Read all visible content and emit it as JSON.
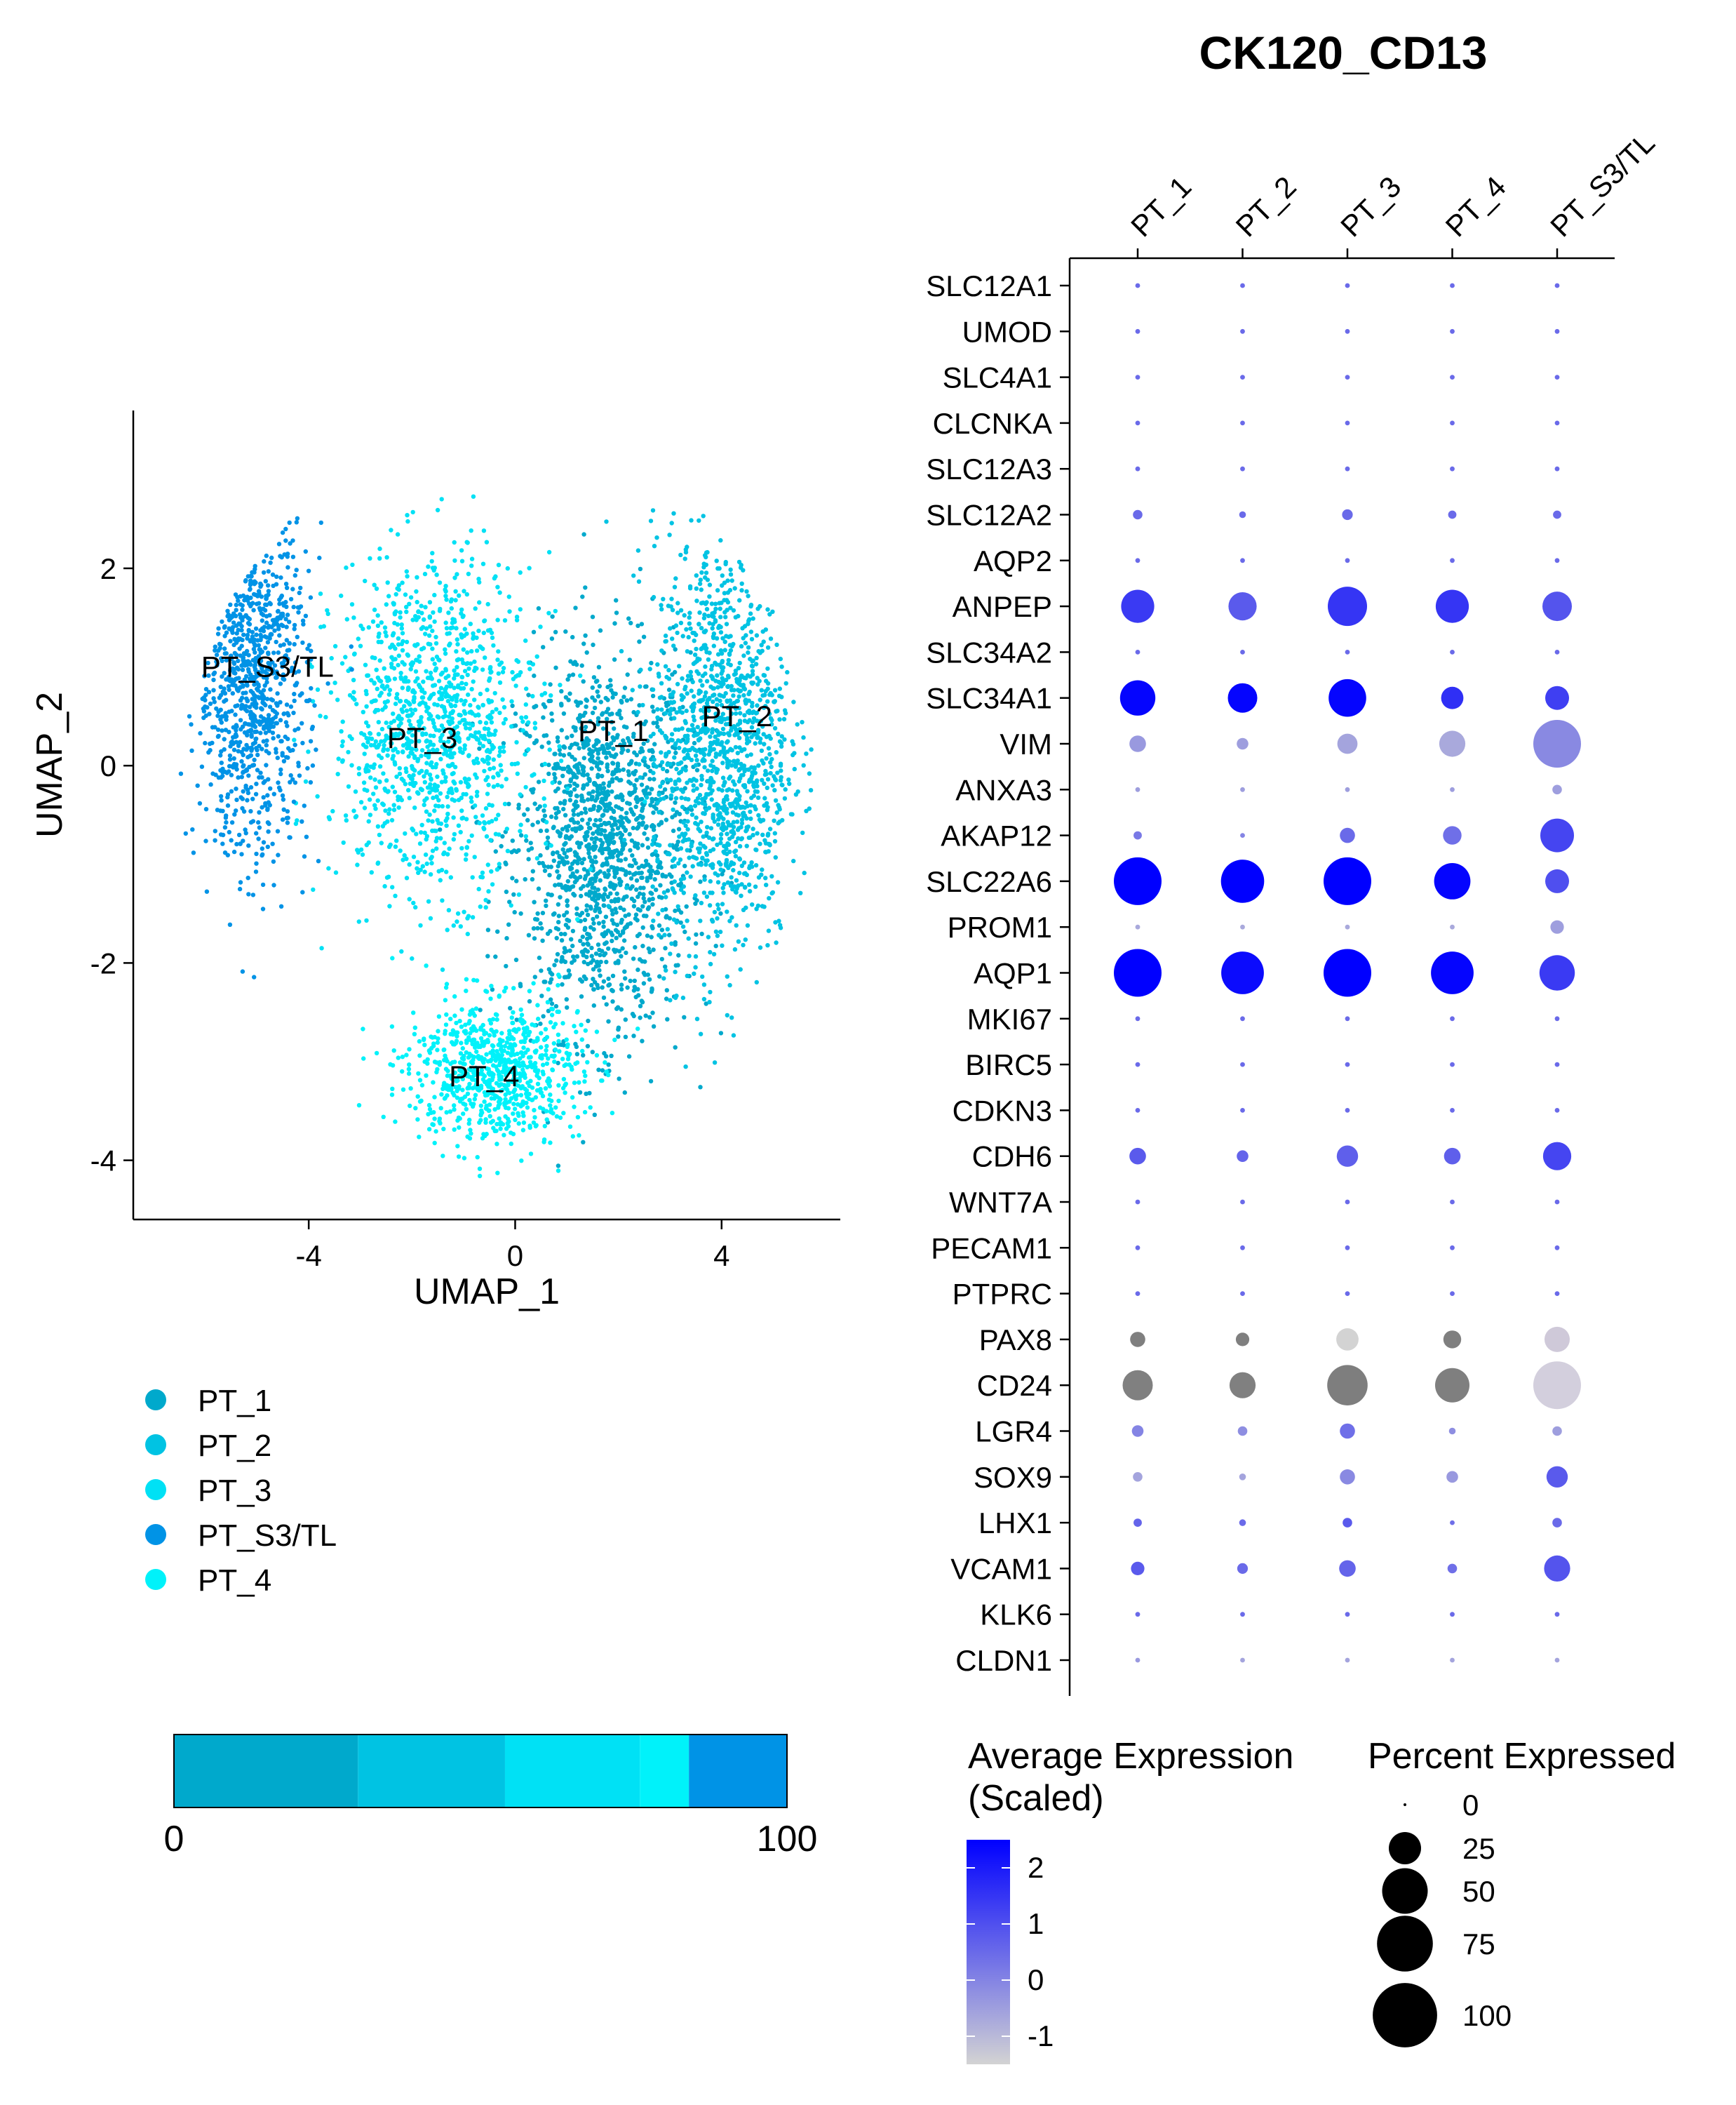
{
  "chart_data": [
    {
      "type": "scatter",
      "xlabel": "UMAP_1",
      "ylabel": "UMAP_2",
      "xlim": [
        -7.4,
        6.3
      ],
      "ylim": [
        -4.6,
        3.6
      ],
      "xticks": [
        -4,
        0,
        4
      ],
      "yticks": [
        -4,
        -2,
        0,
        2
      ],
      "clusters": [
        {
          "name": "PT_1",
          "color": "#00A9CC",
          "label_pos": [
            1.9,
            0.35
          ],
          "center": [
            1.7,
            -0.8
          ],
          "spread": [
            1.4,
            1.6
          ],
          "n": 1500
        },
        {
          "name": "PT_2",
          "color": "#00C3E3",
          "label_pos": [
            4.3,
            0.5
          ],
          "center": [
            4.0,
            0.2
          ],
          "spread": [
            1.1,
            1.8
          ],
          "n": 1300
        },
        {
          "name": "PT_3",
          "color": "#00E1F5",
          "label_pos": [
            -1.8,
            0.28
          ],
          "center": [
            -1.6,
            0.4
          ],
          "spread": [
            1.6,
            1.4
          ],
          "n": 1200
        },
        {
          "name": "PT_S3/TL",
          "color": "#0093E6",
          "label_pos": [
            -4.8,
            1.0
          ],
          "center": [
            -5.1,
            0.9
          ],
          "spread": [
            0.9,
            1.5
          ],
          "n": 900
        },
        {
          "name": "PT_4",
          "color": "#00F2FA",
          "label_pos": [
            -0.6,
            -3.15
          ],
          "center": [
            -0.4,
            -3.1
          ],
          "spread": [
            1.4,
            0.6
          ],
          "n": 800
        }
      ],
      "legend": [
        "PT_1",
        "PT_2",
        "PT_3",
        "PT_S3/TL",
        "PT_4"
      ],
      "grid": false
    },
    {
      "type": "bar",
      "orientation": "stacked-horizontal",
      "axis_labels": [
        "0",
        "100"
      ],
      "xlim": [
        0,
        100
      ],
      "segments": [
        {
          "color": "#00A9CC",
          "value": 30
        },
        {
          "color": "#00C3E3",
          "value": 24
        },
        {
          "color": "#00E1F5",
          "value": 22
        },
        {
          "color": "#00F2FA",
          "value": 8
        },
        {
          "color": "#0093E6",
          "value": 16
        }
      ]
    },
    {
      "type": "heatmap",
      "subtype": "dot-plot",
      "title": "CK120_CD13",
      "clusters": [
        "PT_1",
        "PT_2",
        "PT_3",
        "PT_4",
        "PT_S3/TL"
      ],
      "genes": [
        "SLC12A1",
        "UMOD",
        "SLC4A1",
        "CLCNKA",
        "SLC12A3",
        "SLC12A2",
        "AQP2",
        "ANPEP",
        "SLC34A2",
        "SLC34A1",
        "VIM",
        "ANXA3",
        "AKAP12",
        "SLC22A6",
        "PROM1",
        "AQP1",
        "MKI67",
        "BIRC5",
        "CDKN3",
        "CDH6",
        "WNT7A",
        "PECAM1",
        "PTPRC",
        "PAX8",
        "CD24",
        "LGR4",
        "SOX9",
        "LHX1",
        "VCAM1",
        "KLK6",
        "CLDN1"
      ],
      "percent_expressed": [
        [
          1,
          1,
          1,
          1,
          1
        ],
        [
          1,
          1,
          1,
          1,
          1
        ],
        [
          1,
          1,
          1,
          1,
          1
        ],
        [
          1,
          1,
          1,
          1,
          1
        ],
        [
          1,
          1,
          1,
          1,
          1
        ],
        [
          4,
          2,
          5,
          3,
          3
        ],
        [
          1,
          1,
          1,
          1,
          1
        ],
        [
          48,
          35,
          68,
          48,
          38
        ],
        [
          1,
          1,
          1,
          1,
          1
        ],
        [
          55,
          38,
          62,
          22,
          25
        ],
        [
          12,
          6,
          18,
          30,
          100
        ],
        [
          1,
          1,
          1,
          1,
          4
        ],
        [
          3,
          1,
          10,
          15,
          50
        ],
        [
          100,
          82,
          100,
          58,
          25
        ],
        [
          1,
          1,
          1,
          1,
          8
        ],
        [
          100,
          80,
          100,
          80,
          55
        ],
        [
          1,
          1,
          1,
          1,
          1
        ],
        [
          1,
          1,
          1,
          1,
          1
        ],
        [
          1,
          1,
          1,
          1,
          1
        ],
        [
          12,
          6,
          20,
          12,
          35
        ],
        [
          1,
          1,
          1,
          1,
          1
        ],
        [
          1,
          1,
          1,
          1,
          1
        ],
        [
          1,
          1,
          1,
          1,
          1
        ],
        [
          10,
          8,
          22,
          14,
          28
        ],
        [
          40,
          30,
          72,
          52,
          100
        ],
        [
          6,
          4,
          10,
          2,
          4
        ],
        [
          4,
          2,
          10,
          6,
          20
        ],
        [
          3,
          2,
          4,
          1,
          4
        ],
        [
          8,
          5,
          12,
          4,
          30
        ],
        [
          1,
          1,
          1,
          1,
          1
        ],
        [
          1,
          1,
          1,
          1,
          1
        ]
      ],
      "avg_expression_scaled": [
        [
          0.5,
          0.5,
          0.5,
          0.5,
          0.5
        ],
        [
          0.5,
          0.5,
          0.5,
          0.5,
          0.5
        ],
        [
          0.5,
          0.5,
          0.5,
          0.5,
          0.5
        ],
        [
          0.5,
          0.5,
          0.5,
          0.5,
          0.5
        ],
        [
          0.5,
          0.5,
          0.5,
          0.5,
          0.5
        ],
        [
          0.5,
          0.5,
          0.5,
          0.5,
          0.5
        ],
        [
          0.5,
          0.5,
          0.5,
          0.5,
          0.5
        ],
        [
          1.4,
          0.8,
          1.5,
          1.5,
          0.9
        ],
        [
          0.5,
          0.5,
          0.5,
          0.5,
          0.5
        ],
        [
          2.4,
          2.4,
          2.4,
          1.6,
          1.3
        ],
        [
          -0.4,
          -0.5,
          -0.6,
          -0.7,
          -0.1
        ],
        [
          -0.5,
          -0.5,
          -0.5,
          -0.5,
          -0.5
        ],
        [
          0.2,
          0.0,
          0.5,
          0.4,
          1.2
        ],
        [
          2.5,
          2.5,
          2.5,
          2.4,
          1.0
        ],
        [
          -0.7,
          -0.7,
          -0.7,
          -0.7,
          -0.5
        ],
        [
          2.5,
          2.3,
          2.5,
          2.4,
          1.4
        ],
        [
          0.5,
          0.5,
          0.5,
          0.5,
          0.5
        ],
        [
          0.5,
          0.5,
          0.5,
          0.5,
          0.5
        ],
        [
          0.5,
          0.5,
          0.5,
          0.5,
          0.5
        ],
        [
          0.8,
          0.6,
          0.7,
          0.7,
          1.2
        ],
        [
          0.5,
          0.5,
          0.5,
          0.5,
          0.5
        ],
        [
          0.5,
          0.5,
          0.5,
          0.5,
          0.5
        ],
        [
          0.5,
          0.5,
          0.5,
          0.5,
          0.5
        ],
        [
          null,
          null,
          null,
          null,
          null
        ],
        [
          null,
          null,
          null,
          null,
          null
        ],
        [
          0.0,
          -0.2,
          0.4,
          -0.2,
          -0.5
        ],
        [
          -0.6,
          -0.6,
          -0.1,
          -0.4,
          0.8
        ],
        [
          0.6,
          0.5,
          0.8,
          0.4,
          0.5
        ],
        [
          0.8,
          0.5,
          0.6,
          0.4,
          0.9
        ],
        [
          0.5,
          0.5,
          0.5,
          0.5,
          0.5
        ],
        [
          -0.4,
          -0.6,
          -0.6,
          -0.6,
          -0.6
        ]
      ],
      "gray_rows": {
        "PAX8": [
          "#7F7F7F",
          "#7F7F7F",
          "#D3D3D3",
          "#7F7F7F",
          "#CFC9D9"
        ],
        "CD24": [
          "#808080",
          "#808080",
          "#7E7E7E",
          "#7F7F7F",
          "#D3CFDD"
        ]
      },
      "color_legend": {
        "title_line1": "Average Expression",
        "title_line2": "(Scaled)",
        "ticks": [
          "2",
          "1",
          "0",
          "-1"
        ],
        "low_color": "#D3D3D3",
        "high_color": "#0000FF",
        "range": [
          -1.5,
          2.5
        ]
      },
      "size_legend": {
        "title": "Percent Expressed",
        "ticks": [
          "0",
          "25",
          "50",
          "75",
          "100"
        ]
      }
    }
  ]
}
